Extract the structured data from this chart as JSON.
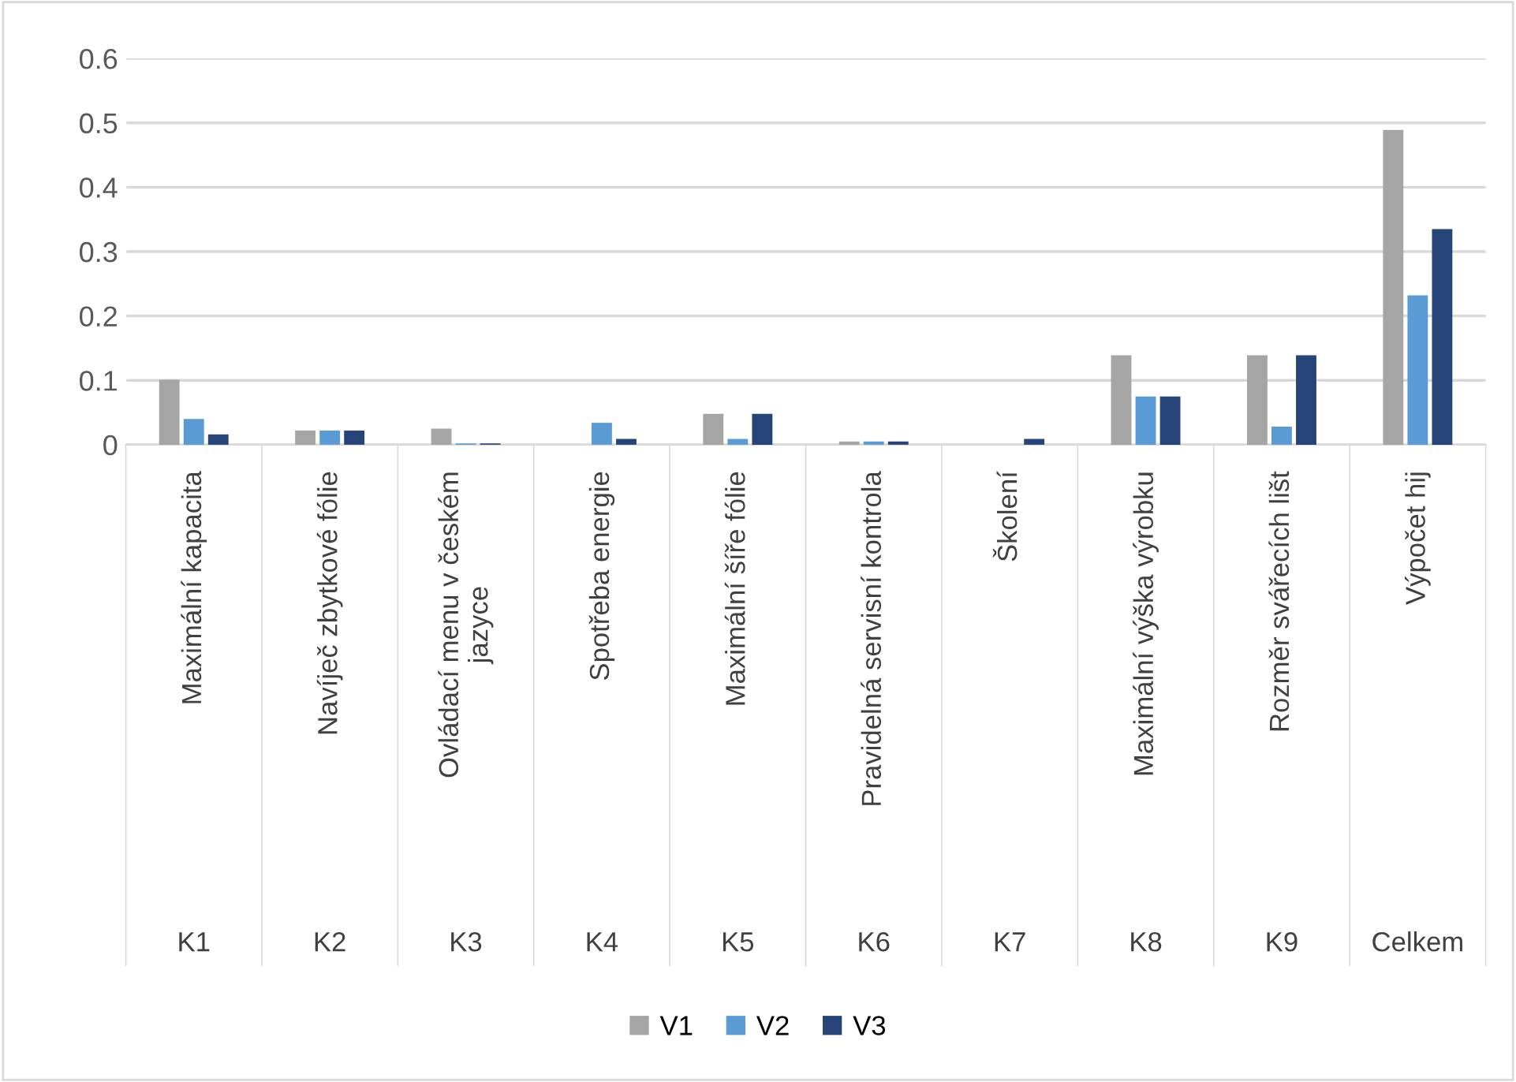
{
  "chart_data": {
    "type": "bar",
    "categories": [
      "Maximální kapacita",
      "Navíječ zbytkové fólie",
      "Ovládací menu v českém\njazyce",
      "Spotřeba energie",
      "Maximální šíře fólie",
      "Pravidelná servisní kontrola",
      "Školení",
      "Maximální výška výrobku",
      "Rozměr svářecích lišt",
      "Výpočet hij"
    ],
    "series": [
      {
        "name": "V1",
        "color": "#a5a5a5",
        "values": [
          0.101,
          0.022,
          0.025,
          0,
          0.048,
          0.005,
          0,
          0.139,
          0.139,
          0.489
        ]
      },
      {
        "name": "V2",
        "color": "#5b9bd5",
        "values": [
          0.04,
          0.022,
          0.002,
          0.034,
          0.009,
          0.005,
          0,
          0.075,
          0.028,
          0.232
        ]
      },
      {
        "name": "V3",
        "color": "#264478",
        "values": [
          0.016,
          0.022,
          0.002,
          0.009,
          0.048,
          0.005,
          0.009,
          0.075,
          0.139,
          0.335
        ]
      }
    ],
    "annotations": [
      "K1",
      "K2",
      "K3",
      "K4",
      "K5",
      "K6",
      "K7",
      "K8",
      "K9",
      "Celkem"
    ],
    "ylim": [
      0,
      0.6
    ],
    "yticks": [
      0,
      0.1,
      0.2,
      0.3,
      0.4,
      0.5,
      0.6
    ],
    "grid": "y",
    "legend": "bottom"
  }
}
